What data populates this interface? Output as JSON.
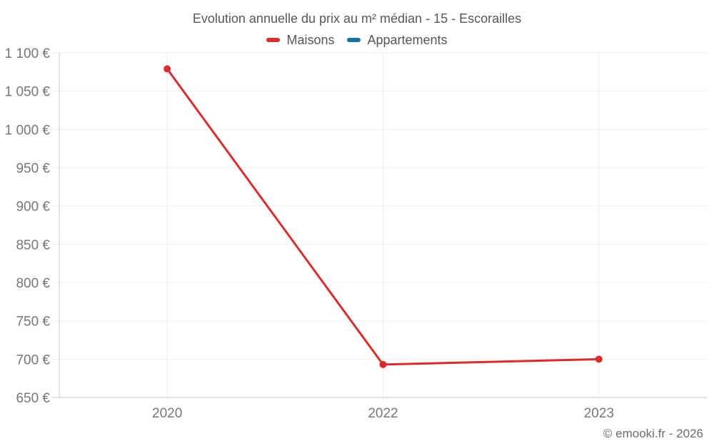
{
  "chart_data": {
    "type": "line",
    "title": "Evolution annuelle du prix au m² médian - 15 - Escorailles",
    "categories": [
      "2020",
      "2022",
      "2023"
    ],
    "series": [
      {
        "name": "Maisons",
        "color": "#d62e2e",
        "values": [
          1079,
          693,
          700
        ]
      },
      {
        "name": "Appartements",
        "color": "#1371a6",
        "values": []
      }
    ],
    "xlabel": "",
    "ylabel": "",
    "ylim": [
      650,
      1100
    ],
    "ytick_step": 50,
    "ytick_suffix": " €",
    "thousands_separator": " ",
    "grid": true,
    "legend_position": "top"
  },
  "colors": {
    "grid_line": "#ededed",
    "axis_line": "#d8d8d8",
    "tick_text": "#767676",
    "title_text": "#54565a",
    "copyright_text": "#6b6b6b"
  },
  "footer": {
    "copyright": "© emooki.fr - 2026"
  }
}
